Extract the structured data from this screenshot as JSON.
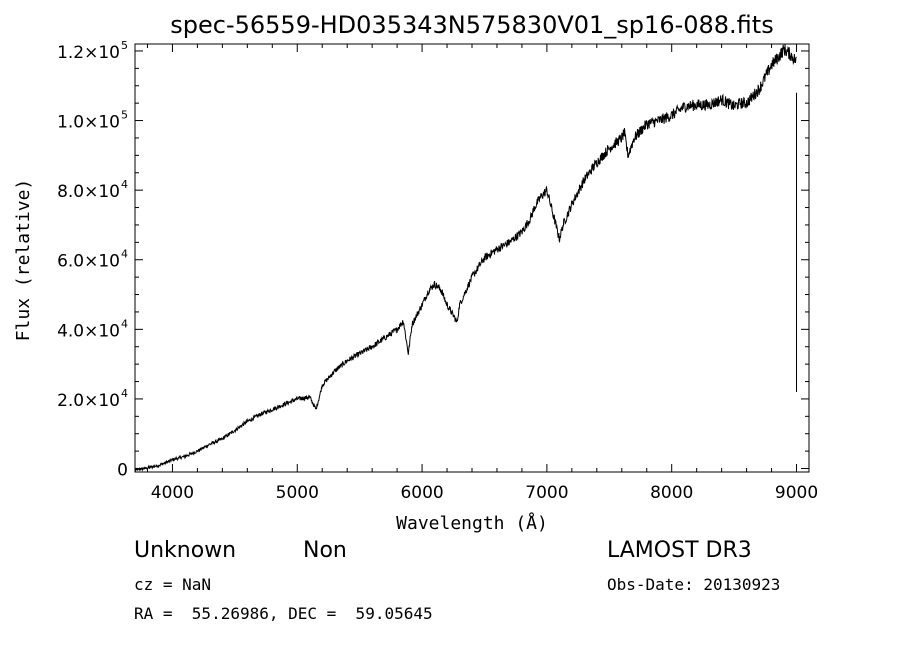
{
  "chart_data": {
    "type": "line",
    "title": "spec-56559-HD035343N575830V01_sp16-088.fits",
    "xlabel": "Wavelength (Å)",
    "ylabel": "Flux (relative)",
    "xlim": [
      3700,
      9100
    ],
    "ylim": [
      -1000,
      122000
    ],
    "x_ticks": [
      4000,
      5000,
      6000,
      7000,
      8000,
      9000
    ],
    "x_tick_labels": [
      "4000",
      "5000",
      "6000",
      "7000",
      "8000",
      "9000"
    ],
    "y_ticks": [
      {
        "value": 0,
        "mantissa": "0",
        "exponent": ""
      },
      {
        "value": 20000,
        "mantissa": "2.0×10",
        "exponent": "4"
      },
      {
        "value": 40000,
        "mantissa": "4.0×10",
        "exponent": "4"
      },
      {
        "value": 60000,
        "mantissa": "6.0×10",
        "exponent": "4"
      },
      {
        "value": 80000,
        "mantissa": "8.0×10",
        "exponent": "4"
      },
      {
        "value": 100000,
        "mantissa": "1.0×10",
        "exponent": "5"
      },
      {
        "value": 120000,
        "mantissa": "1.2×10",
        "exponent": "5"
      }
    ],
    "grid": false,
    "series": [
      {
        "x": [
          3700,
          3800,
          3900,
          4000,
          4100,
          4200,
          4300,
          4400,
          4500,
          4600,
          4700,
          4800,
          4900,
          5000,
          5100,
          5150,
          5180,
          5200,
          5300,
          5400,
          5500,
          5600,
          5700,
          5800,
          5850,
          5890,
          5920,
          6000,
          6050,
          6100,
          6150,
          6200,
          6250,
          6280,
          6300,
          6400,
          6500,
          6600,
          6700,
          6800,
          6870,
          6900,
          6950,
          7000,
          7050,
          7100,
          7130,
          7200,
          7300,
          7400,
          7500,
          7600,
          7620,
          7650,
          7700,
          7800,
          7900,
          8000,
          8100,
          8200,
          8300,
          8400,
          8500,
          8550,
          8600,
          8700,
          8800,
          8850,
          8900,
          8950,
          9000
        ],
        "y": [
          -500,
          200,
          1000,
          2500,
          3500,
          5000,
          7000,
          8500,
          11000,
          13500,
          15500,
          17000,
          18500,
          20000,
          20500,
          17000,
          21000,
          24000,
          28000,
          31000,
          33000,
          35000,
          37500,
          40000,
          42500,
          33000,
          41500,
          47000,
          51000,
          53000,
          51500,
          47000,
          44000,
          42000,
          47000,
          55000,
          60500,
          63000,
          65000,
          68000,
          72000,
          75000,
          78000,
          80000,
          73000,
          66000,
          70000,
          76000,
          83000,
          88000,
          92000,
          95000,
          96500,
          90000,
          95000,
          99000,
          100000,
          101500,
          104000,
          104500,
          104500,
          106000,
          104000,
          105000,
          105000,
          109000,
          116000,
          118000,
          120500,
          119000,
          117000
        ]
      }
    ]
  },
  "footer": {
    "object_class": "Unknown",
    "object_subclass": "Non",
    "cz": "cz = NaN",
    "coords": "RA =  55.26986, DEC =  59.05645",
    "survey": "LAMOST DR3",
    "obs_date": "Obs-Date: 20130923"
  }
}
